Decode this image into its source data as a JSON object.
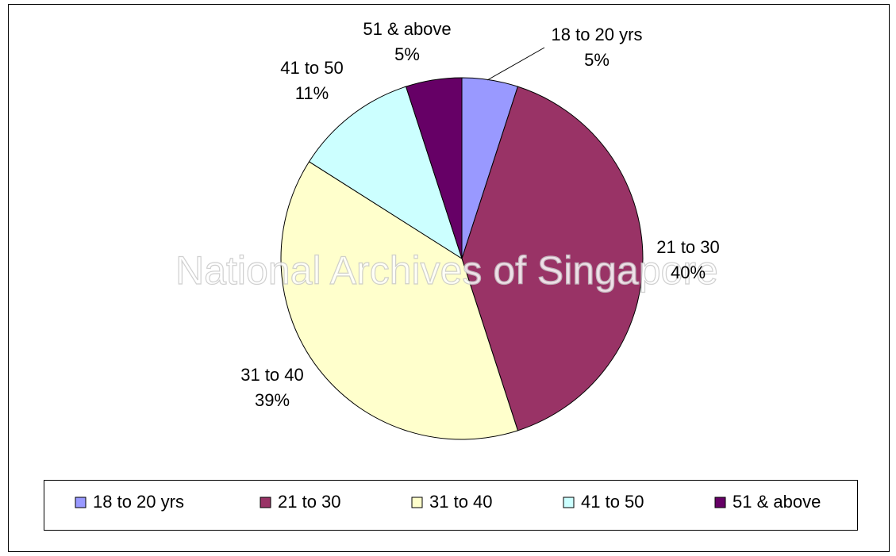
{
  "chart_data": {
    "type": "pie",
    "watermark": "National Archives of Singapore",
    "categories": [
      "18 to 20 yrs",
      "21 to 30",
      "31 to 40",
      "41 to 50",
      "51 & above"
    ],
    "values": [
      5,
      40,
      39,
      11,
      5
    ],
    "value_labels": [
      "5%",
      "40%",
      "39%",
      "11%",
      "5%"
    ],
    "colors": [
      "#9999ff",
      "#993366",
      "#ffffcc",
      "#ccffff",
      "#660066"
    ],
    "legend": "bottom"
  }
}
